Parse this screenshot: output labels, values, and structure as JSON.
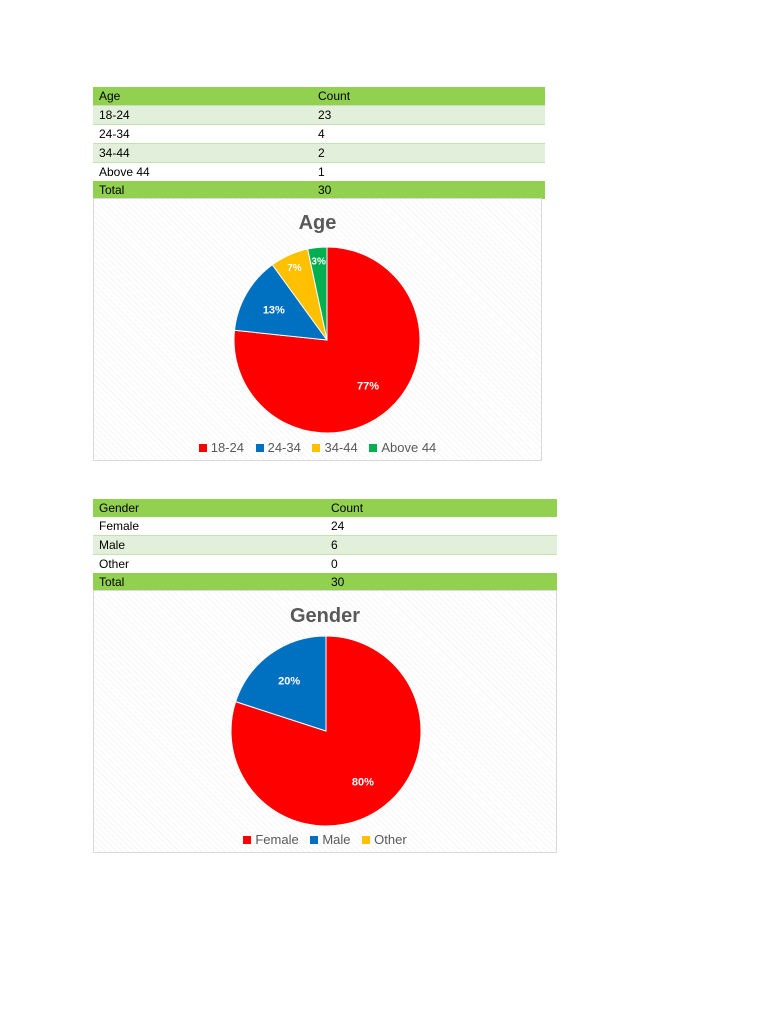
{
  "age_table": {
    "header": [
      "Age",
      "Count"
    ],
    "rows": [
      [
        "18-24",
        "23"
      ],
      [
        "24-34",
        "4"
      ],
      [
        "34-44",
        "2"
      ],
      [
        "Above 44",
        "1"
      ]
    ],
    "total": [
      "Total",
      "30"
    ]
  },
  "gender_table": {
    "header": [
      "Gender",
      "Count"
    ],
    "rows": [
      [
        "Female",
        "24"
      ],
      [
        "Male",
        "6"
      ],
      [
        "Other",
        "0"
      ]
    ],
    "total": [
      "Total",
      "30"
    ]
  },
  "chart_data": [
    {
      "type": "pie",
      "title": "Age",
      "categories": [
        "18-24",
        "24-34",
        "34-44",
        "Above 44"
      ],
      "values": [
        23,
        4,
        2,
        1
      ],
      "labels": [
        "77%",
        "13%",
        "7%",
        "3%"
      ],
      "colors": [
        "#ff0000",
        "#0070c0",
        "#ffc000",
        "#00b050"
      ],
      "legend_position": "bottom"
    },
    {
      "type": "pie",
      "title": "Gender",
      "categories": [
        "Female",
        "Male",
        "Other"
      ],
      "values": [
        24,
        6,
        0
      ],
      "labels": [
        "80%",
        "20%",
        ""
      ],
      "colors": [
        "#ff0000",
        "#0070c0",
        "#ffc000"
      ],
      "legend_position": "bottom"
    }
  ]
}
